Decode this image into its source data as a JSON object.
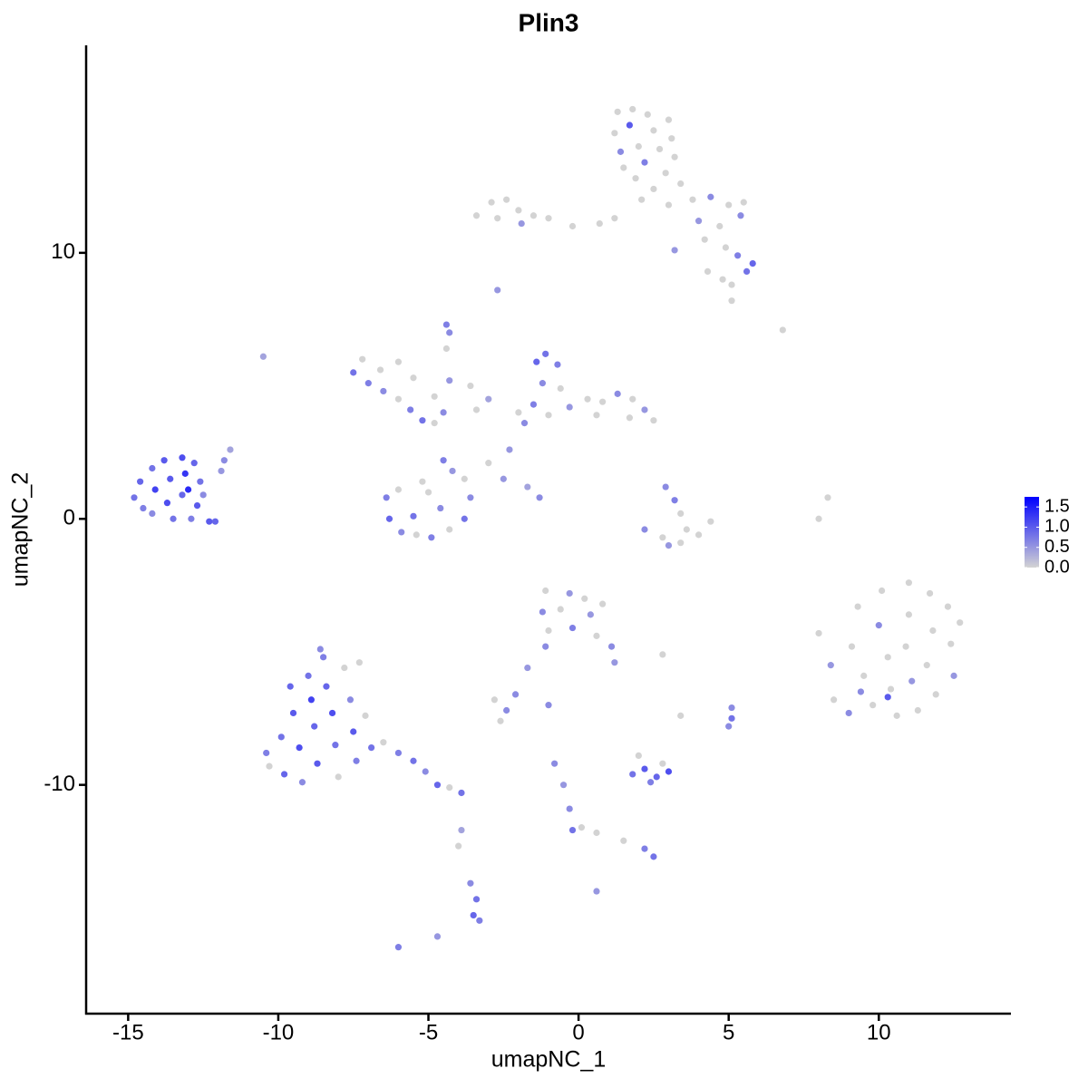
{
  "chart_data": {
    "type": "scatter",
    "title": "Plin3",
    "x_label": "umapNC_1",
    "y_label": "umapNC_2",
    "xlim": [
      -16.4,
      14.4
    ],
    "ylim": [
      -18.6,
      17.8
    ],
    "xticks": [
      -15,
      -10,
      -5,
      0,
      5,
      10
    ],
    "yticks": [
      -10,
      0,
      10
    ],
    "color_low": "#d3d3d3",
    "color_high": "#0000ff",
    "colorlim": [
      0,
      1.75
    ],
    "colorticks": [
      {
        "value": 0,
        "label": "0.0"
      },
      0.5,
      {
        "value": 1,
        "label": "1.0"
      },
      1.5
    ],
    "legend_position": "right",
    "x": [
      1.3,
      1.8,
      2.3,
      3.0,
      1.2,
      1.7,
      2.5,
      3.1,
      1.4,
      2.0,
      2.7,
      3.2,
      1.5,
      2.2,
      2.9,
      1.9,
      2.5,
      3.4,
      2.1,
      3.0,
      -3.4,
      -2.9,
      -2.4,
      -2.7,
      -2.0,
      -1.5,
      -1.9,
      -1.0,
      -0.2,
      0.7,
      1.2,
      3.8,
      4.4,
      5.0,
      5.5,
      4.0,
      4.7,
      5.4,
      4.2,
      4.9,
      3.2,
      5.3,
      5.8,
      5.6,
      4.3,
      4.8,
      5.1,
      5.1,
      6.8,
      -2.7,
      -10.5,
      -14.8,
      -14.6,
      -14.2,
      -13.8,
      -13.2,
      -12.8,
      -14.5,
      -14.1,
      -13.6,
      -13.1,
      -12.6,
      -14.2,
      -13.7,
      -13.2,
      -12.7,
      -13.5,
      -12.9,
      -12.3,
      -12.1,
      -12.5,
      -11.9,
      -11.6,
      -11.8,
      -13.0,
      -7.5,
      -7.2,
      -7.0,
      -6.6,
      -6.5,
      -6.0,
      -5.6,
      -5.2,
      -4.8,
      -4.5,
      -4.8,
      -4.3,
      -4.4,
      -4.3,
      -4.4,
      -3.6,
      -3.4,
      -3.0,
      -6.0,
      -5.5,
      -6.4,
      -6.3,
      -5.9,
      -5.4,
      -4.9,
      -4.3,
      -3.8,
      -3.6,
      -3.8,
      -4.2,
      -4.5,
      -5.0,
      -5.5,
      -6.0,
      -4.6,
      -5.2,
      -1.4,
      -1.1,
      -0.7,
      -1.2,
      -0.6,
      -1.5,
      -1.0,
      -0.3,
      0.3,
      0.8,
      1.3,
      1.8,
      2.2,
      2.5,
      1.7,
      0.6,
      -1.8,
      -2.3,
      -2.0,
      -3.0,
      -2.5,
      -1.7,
      -1.3,
      2.9,
      3.2,
      3.4,
      2.8,
      3.4,
      4.0,
      4.4,
      2.2,
      3.0,
      3.6,
      8.3,
      8.0,
      8.0,
      8.4,
      8.5,
      9.0,
      9.3,
      9.1,
      9.5,
      9.8,
      10.1,
      10.0,
      10.3,
      10.4,
      10.6,
      11.0,
      11.0,
      10.9,
      11.1,
      11.3,
      11.7,
      11.8,
      11.6,
      11.9,
      12.3,
      12.4,
      12.5,
      12.7,
      9.4,
      10.3,
      -10.4,
      -10.3,
      -9.9,
      -9.8,
      -9.5,
      -9.3,
      -9.2,
      -9.0,
      -8.9,
      -8.8,
      -8.7,
      -8.5,
      -8.4,
      -8.2,
      -8.1,
      -8.0,
      -7.8,
      -7.6,
      -7.5,
      -7.4,
      -7.3,
      -7.1,
      -6.9,
      -6.5,
      -6.0,
      -5.5,
      -5.1,
      -4.7,
      -4.3,
      -3.9,
      -9.6,
      -8.6,
      -1.1,
      -0.3,
      0.2,
      -1.2,
      -0.6,
      0.4,
      0.8,
      -1.0,
      -0.2,
      0.6,
      1.1,
      1.2,
      -1.1,
      2.8,
      -1.7,
      -2.1,
      -2.8,
      -2.4,
      -2.6,
      -1.0,
      3.4,
      5.1,
      5.1,
      5.0,
      1.8,
      2.2,
      2.6,
      3.0,
      2.4,
      2.0,
      2.8,
      -0.8,
      -0.5,
      -0.3,
      -0.2,
      0.1,
      0.6,
      1.5,
      2.2,
      2.5,
      0.6,
      -3.9,
      -4.0,
      -3.6,
      -3.4,
      -3.5,
      -3.3,
      -6.0,
      -4.7
    ],
    "y": [
      15.3,
      15.4,
      15.2,
      15.0,
      14.5,
      14.8,
      14.6,
      14.3,
      13.8,
      14.0,
      13.9,
      13.6,
      13.2,
      13.4,
      13.0,
      12.8,
      12.4,
      12.6,
      12.0,
      11.8,
      11.4,
      11.9,
      12.0,
      11.3,
      11.6,
      11.4,
      11.1,
      11.3,
      11.0,
      11.1,
      11.3,
      12.0,
      12.1,
      11.8,
      11.9,
      11.2,
      11.0,
      11.4,
      10.5,
      10.2,
      10.1,
      9.9,
      9.6,
      9.3,
      9.3,
      9.0,
      8.8,
      8.2,
      7.1,
      8.6,
      6.1,
      0.8,
      1.4,
      1.9,
      2.2,
      2.3,
      2.1,
      0.4,
      1.1,
      1.5,
      1.7,
      1.4,
      0.2,
      0.6,
      0.9,
      0.5,
      0.0,
      0.0,
      -0.1,
      -0.1,
      0.9,
      1.8,
      2.6,
      2.2,
      1.1,
      5.5,
      6.0,
      5.1,
      5.6,
      4.8,
      4.5,
      4.1,
      3.7,
      3.6,
      4.0,
      4.6,
      5.2,
      6.4,
      7.0,
      7.3,
      5.0,
      4.1,
      4.5,
      5.9,
      5.3,
      0.8,
      0.0,
      -0.5,
      -0.6,
      -0.7,
      -0.4,
      0.0,
      0.8,
      1.5,
      1.8,
      2.2,
      1.0,
      0.1,
      1.1,
      0.4,
      1.4,
      5.9,
      6.2,
      5.8,
      5.1,
      4.9,
      4.3,
      3.9,
      4.2,
      4.5,
      4.4,
      4.7,
      4.5,
      4.1,
      3.7,
      3.8,
      3.9,
      3.6,
      2.6,
      4.0,
      2.1,
      1.5,
      1.2,
      0.8,
      1.2,
      0.7,
      0.2,
      -0.7,
      -0.9,
      -0.6,
      -0.1,
      -0.4,
      -1.0,
      -0.4,
      0.8,
      0.0,
      -4.3,
      -5.5,
      -6.8,
      -7.3,
      -3.3,
      -4.8,
      -5.9,
      -7.0,
      -2.7,
      -4.0,
      -5.2,
      -6.4,
      -7.4,
      -2.4,
      -3.6,
      -4.8,
      -6.1,
      -7.2,
      -2.8,
      -4.2,
      -5.5,
      -6.6,
      -3.3,
      -4.7,
      -5.9,
      -3.9,
      -6.5,
      -6.7,
      -8.8,
      -9.3,
      -8.2,
      -9.6,
      -7.3,
      -8.6,
      -9.9,
      -5.9,
      -6.8,
      -7.8,
      -9.2,
      -5.2,
      -6.3,
      -7.3,
      -8.5,
      -9.7,
      -5.6,
      -6.8,
      -8.0,
      -9.1,
      -5.4,
      -7.4,
      -8.6,
      -8.4,
      -8.8,
      -9.1,
      -9.5,
      -10.0,
      -10.1,
      -10.3,
      -6.3,
      -4.9,
      -2.7,
      -2.8,
      -3.0,
      -3.5,
      -3.4,
      -3.6,
      -3.2,
      -4.2,
      -4.1,
      -4.4,
      -4.8,
      -5.4,
      -4.8,
      -5.1,
      -5.6,
      -6.6,
      -6.8,
      -7.2,
      -7.6,
      -7.0,
      -7.4,
      -7.1,
      -7.5,
      -7.8,
      -9.6,
      -9.4,
      -9.7,
      -9.5,
      -9.9,
      -8.9,
      -9.2,
      -9.2,
      -10.0,
      -10.9,
      -11.7,
      -11.6,
      -11.8,
      -12.1,
      -12.4,
      -12.7,
      -14.0,
      -11.7,
      -12.3,
      -13.7,
      -14.3,
      -14.9,
      -15.1,
      -16.1,
      -15.7
    ],
    "values": [
      0,
      0,
      0,
      0,
      0,
      1.0,
      0,
      0,
      0.6,
      0,
      0,
      0,
      0,
      0.7,
      0,
      0,
      0,
      0,
      0,
      0,
      0,
      0,
      0,
      0,
      0,
      0,
      0.5,
      0,
      0,
      0,
      0,
      0,
      0.6,
      0,
      0,
      0.5,
      0,
      0.6,
      0,
      0,
      0.5,
      0.7,
      0.9,
      0.8,
      0,
      0,
      0,
      0,
      0,
      0.5,
      0.4,
      0.8,
      0.9,
      0.8,
      1.0,
      1.1,
      0.9,
      0.7,
      1.2,
      1.0,
      1.3,
      0.8,
      0.6,
      1.1,
      0.9,
      1.0,
      0.8,
      0.7,
      1.0,
      0.9,
      0.6,
      0.5,
      0.4,
      0.6,
      1.4,
      0.8,
      0,
      0.7,
      0,
      0.6,
      0,
      0.7,
      0.8,
      0,
      0.6,
      0,
      0.5,
      0,
      0.6,
      0.7,
      0,
      0,
      0.4,
      0,
      0,
      0.7,
      0.9,
      0.6,
      0,
      0.7,
      0,
      0.8,
      0.6,
      0,
      0.5,
      0.7,
      0,
      0.8,
      0,
      0.6,
      0,
      0.9,
      0.8,
      0.7,
      0.6,
      0,
      0.7,
      0,
      0.5,
      0,
      0,
      0.6,
      0,
      0.5,
      0,
      0,
      0,
      0.6,
      0.5,
      0,
      0,
      0.5,
      0.4,
      0.6,
      0.6,
      0.7,
      0,
      0,
      0,
      0,
      0,
      0.6,
      0.5,
      0,
      0,
      0,
      0,
      0.5,
      0,
      0.6,
      0,
      0,
      0,
      0,
      0,
      0.6,
      0,
      0,
      0,
      0,
      0,
      0,
      0.5,
      0,
      0,
      0,
      0,
      0,
      0,
      0,
      0.5,
      0,
      0.6,
      1.0,
      0.7,
      0,
      0.8,
      0.9,
      1.0,
      1.1,
      0.6,
      0.8,
      1.2,
      0.9,
      1.0,
      0.7,
      0.9,
      1.1,
      0.8,
      0,
      0,
      0.6,
      1.0,
      0.7,
      0,
      0,
      0.8,
      0,
      0.7,
      0.8,
      0.6,
      0.9,
      0,
      0.8,
      0.9,
      0.6,
      0,
      0.5,
      0,
      0.6,
      0,
      0.5,
      0,
      0,
      0.7,
      0,
      0.6,
      0.5,
      0.6,
      0,
      0.5,
      0.6,
      0,
      0.6,
      0,
      0.6,
      0,
      0.6,
      0.8,
      0.6,
      0.8,
      1.0,
      0.9,
      1.1,
      0.7,
      0,
      0,
      0.6,
      0.5,
      0.6,
      0.8,
      0,
      0,
      0,
      0.7,
      0.8,
      0.5,
      0.4,
      0,
      0.6,
      0.8,
      0.9,
      0.7,
      0.7,
      0.5
    ]
  }
}
